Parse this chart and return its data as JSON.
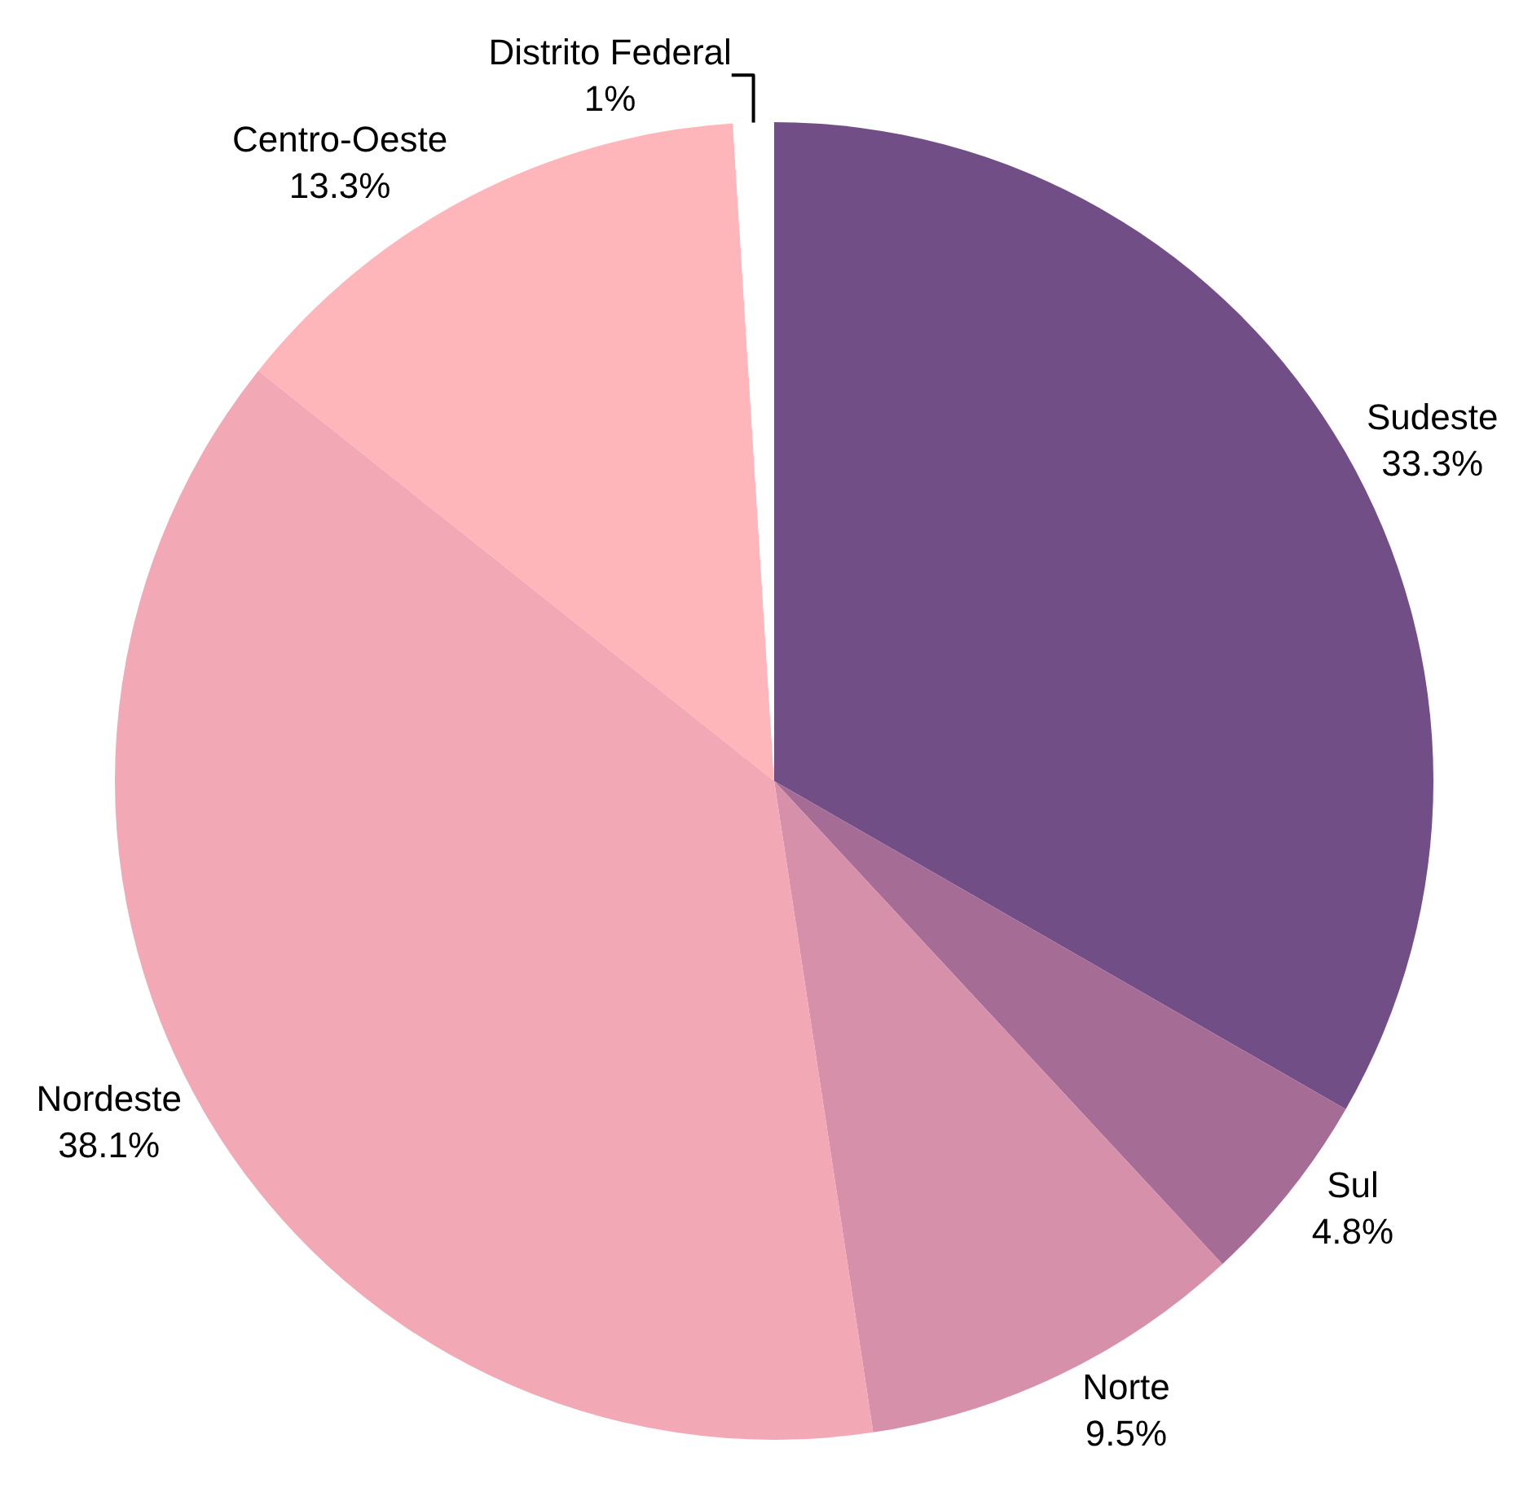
{
  "chart_data": {
    "type": "pie",
    "categories": [
      "Sudeste",
      "Sul",
      "Norte",
      "Nordeste",
      "Centro-Oeste",
      "Distrito Federal"
    ],
    "values": [
      33.3,
      4.8,
      9.5,
      38.1,
      13.3,
      1
    ],
    "value_labels": [
      "33.3%",
      "4.8%",
      "9.5%",
      "38.1%",
      "13.3%",
      "1%"
    ],
    "colors": [
      "#724e86",
      "#a56d96",
      "#d690aa",
      "#f3a8b5",
      "#ffb6bb",
      "#ffffff"
    ],
    "legend": false
  }
}
